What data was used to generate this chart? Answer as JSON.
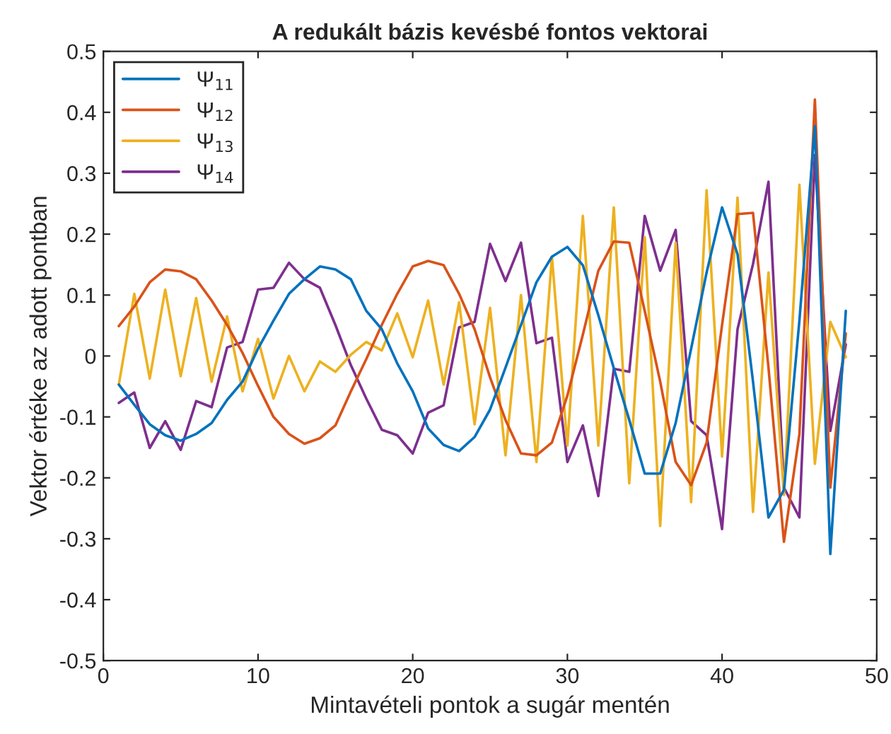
{
  "chart_data": {
    "type": "line",
    "title": "A redukált bázis kevésbé fontos vektorai",
    "xlabel": "Mintavételi pontok a sugár mentén",
    "ylabel": "Vektor értéke az adott pontban",
    "x": [
      1,
      2,
      3,
      4,
      5,
      6,
      7,
      8,
      9,
      10,
      11,
      12,
      13,
      14,
      15,
      16,
      17,
      18,
      19,
      20,
      21,
      22,
      23,
      24,
      25,
      26,
      27,
      28,
      29,
      30,
      31,
      32,
      33,
      34,
      35,
      36,
      37,
      38,
      39,
      40,
      41,
      42,
      43,
      44,
      45,
      46,
      47,
      48
    ],
    "series": [
      {
        "name": "Ψ$_{11}$",
        "color": "#0072bd",
        "values": [
          -0.047,
          -0.08,
          -0.112,
          -0.13,
          -0.139,
          -0.128,
          -0.11,
          -0.072,
          -0.042,
          0.012,
          0.058,
          0.102,
          0.126,
          0.147,
          0.142,
          0.126,
          0.074,
          0.044,
          -0.012,
          -0.058,
          -0.119,
          -0.146,
          -0.156,
          -0.133,
          -0.088,
          -0.019,
          0.051,
          0.121,
          0.163,
          0.179,
          0.149,
          0.067,
          -0.02,
          -0.105,
          -0.193,
          -0.193,
          -0.11,
          0.012,
          0.137,
          0.244,
          0.167,
          -0.042,
          -0.265,
          -0.22,
          0.058,
          0.377,
          -0.325,
          0.074
        ]
      },
      {
        "name": "Ψ$_{12}$",
        "color": "#d95319",
        "values": [
          0.049,
          0.081,
          0.121,
          0.142,
          0.139,
          0.126,
          0.091,
          0.051,
          0.005,
          -0.049,
          -0.1,
          -0.128,
          -0.144,
          -0.135,
          -0.114,
          -0.058,
          -0.005,
          0.051,
          0.102,
          0.147,
          0.156,
          0.149,
          0.102,
          0.044,
          -0.035,
          -0.105,
          -0.16,
          -0.163,
          -0.142,
          -0.065,
          0.035,
          0.14,
          0.188,
          0.186,
          0.074,
          -0.042,
          -0.174,
          -0.212,
          -0.142,
          0.051,
          0.233,
          0.235,
          -0.019,
          -0.305,
          -0.128,
          0.421,
          -0.216,
          0.037
        ]
      },
      {
        "name": "Ψ$_{13}$",
        "color": "#edb120",
        "values": [
          -0.047,
          0.102,
          -0.037,
          0.109,
          -0.033,
          0.095,
          -0.042,
          0.065,
          -0.058,
          0.028,
          -0.07,
          0.0,
          -0.058,
          -0.009,
          -0.026,
          0.002,
          0.023,
          0.009,
          0.07,
          -0.002,
          0.091,
          -0.047,
          0.088,
          -0.112,
          0.079,
          -0.163,
          0.1,
          -0.174,
          0.163,
          -0.147,
          0.23,
          -0.147,
          0.244,
          -0.209,
          0.195,
          -0.279,
          0.186,
          -0.24,
          0.272,
          -0.165,
          0.26,
          -0.256,
          0.137,
          -0.228,
          0.281,
          -0.177,
          0.056,
          -0.002
        ]
      },
      {
        "name": "Ψ$_{14}$",
        "color": "#7e2f8e",
        "values": [
          -0.077,
          -0.06,
          -0.151,
          -0.107,
          -0.154,
          -0.074,
          -0.084,
          0.014,
          0.023,
          0.109,
          0.112,
          0.153,
          0.126,
          0.112,
          0.051,
          -0.015,
          -0.07,
          -0.121,
          -0.13,
          -0.16,
          -0.093,
          -0.081,
          0.047,
          0.056,
          0.184,
          0.123,
          0.186,
          0.021,
          0.03,
          -0.174,
          -0.114,
          -0.23,
          -0.021,
          -0.026,
          0.23,
          0.14,
          0.207,
          -0.107,
          -0.13,
          -0.284,
          0.044,
          0.151,
          0.286,
          -0.216,
          -0.265,
          0.33,
          -0.123,
          0.019
        ]
      }
    ],
    "xlim": [
      0,
      50
    ],
    "xticks": [
      0,
      10,
      20,
      30,
      40,
      50
    ],
    "ylim": [
      -0.5,
      0.5
    ],
    "yticks": [
      -0.5,
      -0.4,
      -0.3,
      -0.2,
      -0.1,
      0,
      0.1,
      0.2,
      0.3,
      0.4,
      0.5
    ],
    "legend": "top left",
    "grid": false,
    "marker": "none",
    "line_style": "solid"
  }
}
